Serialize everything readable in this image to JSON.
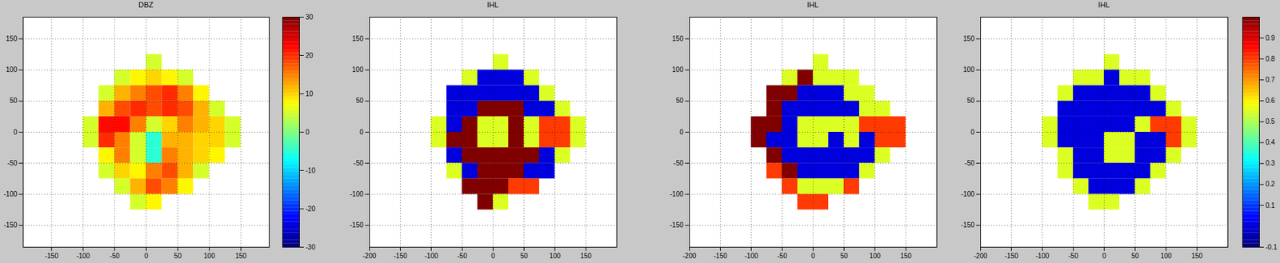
{
  "chart_data": [
    {
      "type": "heatmap",
      "title": "DBZ",
      "x": [
        -87.5,
        -62.5,
        -37.5,
        -12.5,
        12.5,
        37.5,
        62.5,
        87.5,
        112.5,
        137.5
      ],
      "y": [
        112.5,
        87.5,
        62.5,
        37.5,
        12.5,
        -12.5,
        -37.5,
        -62.5,
        -87.5,
        -112.5
      ],
      "values": [
        [
          null,
          null,
          null,
          null,
          5,
          null,
          null,
          null,
          null,
          null
        ],
        [
          null,
          null,
          5,
          8,
          10,
          8,
          5,
          null,
          null,
          null
        ],
        [
          null,
          5,
          12,
          15,
          18,
          20,
          15,
          8,
          null,
          null
        ],
        [
          null,
          12,
          18,
          20,
          18,
          20,
          18,
          12,
          5,
          null
        ],
        [
          5,
          22,
          22,
          15,
          5,
          10,
          15,
          12,
          10,
          5
        ],
        [
          5,
          20,
          15,
          5,
          -5,
          12,
          12,
          10,
          10,
          5
        ],
        [
          null,
          8,
          15,
          5,
          -5,
          15,
          12,
          10,
          8,
          null
        ],
        [
          null,
          5,
          10,
          8,
          15,
          18,
          12,
          5,
          null,
          null
        ],
        [
          null,
          null,
          5,
          12,
          18,
          15,
          8,
          null,
          null,
          null
        ],
        [
          null,
          null,
          null,
          5,
          8,
          null,
          null,
          null,
          null,
          null
        ]
      ],
      "xlim": [
        -195,
        195
      ],
      "ylim": [
        -185,
        185
      ],
      "xticks": [
        -150,
        -100,
        -50,
        0,
        50,
        100,
        150
      ],
      "yticks": [
        -150,
        -100,
        -50,
        0,
        50,
        100,
        150
      ],
      "grid": true,
      "colorbar": {
        "range": [
          -30,
          30
        ],
        "ticks": [
          -30,
          -20,
          -10,
          0,
          10,
          20,
          30
        ]
      }
    },
    {
      "type": "heatmap",
      "title": "IHL",
      "x": [
        -87.5,
        -62.5,
        -37.5,
        -12.5,
        12.5,
        37.5,
        62.5,
        87.5,
        112.5,
        137.5
      ],
      "y": [
        112.5,
        87.5,
        62.5,
        37.5,
        12.5,
        -12.5,
        -37.5,
        -62.5,
        -87.5,
        -112.5
      ],
      "values": [
        [
          null,
          null,
          null,
          null,
          0.55,
          null,
          null,
          null,
          null,
          null
        ],
        [
          null,
          null,
          0.55,
          0,
          0,
          0,
          0.55,
          null,
          null,
          null
        ],
        [
          null,
          0,
          0,
          0,
          0,
          0,
          0,
          0.55,
          null,
          null
        ],
        [
          null,
          0,
          0,
          1,
          1,
          1,
          0,
          0,
          0.55,
          null
        ],
        [
          0.55,
          0,
          1,
          0.55,
          0.55,
          1,
          0.55,
          0.8,
          0.8,
          0.55
        ],
        [
          0.55,
          1,
          1,
          0.55,
          0.55,
          1,
          0.55,
          0.8,
          0.8,
          0.55
        ],
        [
          null,
          0,
          1,
          1,
          1,
          1,
          1,
          0,
          0.55,
          null
        ],
        [
          null,
          0.55,
          0,
          1,
          1,
          1,
          0,
          0,
          null,
          null
        ],
        [
          null,
          null,
          1,
          1,
          1,
          0.8,
          0.8,
          null,
          null,
          null
        ],
        [
          null,
          null,
          null,
          1,
          0.55,
          null,
          null,
          null,
          null,
          null
        ]
      ],
      "xlim": [
        -200,
        200
      ],
      "ylim": [
        -185,
        185
      ],
      "xticks": [
        -200,
        -150,
        -100,
        -50,
        0,
        50,
        100,
        150
      ],
      "yticks": [
        -150,
        -100,
        -50,
        0,
        50,
        100,
        150
      ],
      "grid": true
    },
    {
      "type": "heatmap",
      "title": "IHL",
      "x": [
        -87.5,
        -62.5,
        -37.5,
        -12.5,
        12.5,
        37.5,
        62.5,
        87.5,
        112.5,
        137.5
      ],
      "y": [
        112.5,
        87.5,
        62.5,
        37.5,
        12.5,
        -12.5,
        -37.5,
        -62.5,
        -87.5,
        -112.5
      ],
      "values": [
        [
          null,
          null,
          null,
          null,
          0.55,
          null,
          null,
          null,
          null,
          null
        ],
        [
          null,
          null,
          0.55,
          1,
          0.55,
          0.55,
          0.55,
          null,
          null,
          null
        ],
        [
          null,
          1,
          1,
          0,
          0,
          0,
          0.55,
          0.55,
          null,
          null
        ],
        [
          null,
          1,
          0,
          0,
          0,
          0,
          0,
          0.55,
          0.55,
          null
        ],
        [
          1,
          1,
          0,
          0.55,
          0.55,
          0.55,
          0.55,
          0.8,
          0.8,
          0.8
        ],
        [
          1,
          0,
          0,
          0.55,
          0.55,
          0,
          0.55,
          0,
          0.8,
          0.8
        ],
        [
          null,
          1,
          0,
          0,
          0,
          0,
          0,
          0,
          0.55,
          null
        ],
        [
          null,
          0.8,
          1,
          0,
          0,
          0,
          0,
          0.55,
          null,
          null
        ],
        [
          null,
          null,
          0.8,
          0.55,
          0.55,
          0.55,
          0.8,
          null,
          null,
          null
        ],
        [
          null,
          null,
          null,
          0.8,
          0.8,
          null,
          null,
          null,
          null,
          null
        ]
      ],
      "xlim": [
        -200,
        200
      ],
      "ylim": [
        -185,
        185
      ],
      "xticks": [
        -200,
        -150,
        -100,
        -50,
        0,
        50,
        100,
        150
      ],
      "yticks": [
        -150,
        -100,
        -50,
        0,
        50,
        100,
        150
      ],
      "grid": true
    },
    {
      "type": "heatmap",
      "title": "IHL",
      "x": [
        -87.5,
        -62.5,
        -37.5,
        -12.5,
        12.5,
        37.5,
        62.5,
        87.5,
        112.5,
        137.5
      ],
      "y": [
        112.5,
        87.5,
        62.5,
        37.5,
        12.5,
        -12.5,
        -37.5,
        -62.5,
        -87.5,
        -112.5
      ],
      "values": [
        [
          null,
          null,
          null,
          null,
          0.55,
          null,
          null,
          null,
          null,
          null
        ],
        [
          null,
          null,
          0.55,
          0.55,
          0,
          0.55,
          0.55,
          null,
          null,
          null
        ],
        [
          null,
          0.55,
          0,
          0,
          0,
          0,
          0,
          0.55,
          null,
          null
        ],
        [
          null,
          0,
          0,
          0,
          0,
          0,
          0,
          0,
          0.55,
          null
        ],
        [
          0.55,
          0,
          0,
          0,
          0,
          0,
          0.55,
          0.8,
          0.8,
          0.55
        ],
        [
          0.55,
          0,
          0,
          0,
          0.55,
          0.55,
          0,
          0,
          0.8,
          0.55
        ],
        [
          null,
          0.55,
          0,
          0,
          0.55,
          0.55,
          0,
          0,
          0.55,
          null
        ],
        [
          null,
          0.55,
          0,
          0,
          0,
          0,
          0,
          0.55,
          null,
          null
        ],
        [
          null,
          null,
          0.55,
          0,
          0,
          0,
          0.55,
          null,
          null,
          null
        ],
        [
          null,
          null,
          null,
          0.55,
          0.55,
          null,
          null,
          null,
          null,
          null
        ]
      ],
      "xlim": [
        -200,
        200
      ],
      "ylim": [
        -185,
        185
      ],
      "xticks": [
        -200,
        -150,
        -100,
        -50,
        0,
        50,
        100,
        150
      ],
      "yticks": [
        -150,
        -100,
        -50,
        0,
        50,
        100,
        150
      ],
      "grid": true,
      "colorbar": {
        "range": [
          -0.1,
          1
        ],
        "ticks": [
          -0.1,
          0.1,
          0.2,
          0.3,
          0.4,
          0.5,
          0.6,
          0.7,
          0.8,
          0.9
        ]
      }
    }
  ]
}
